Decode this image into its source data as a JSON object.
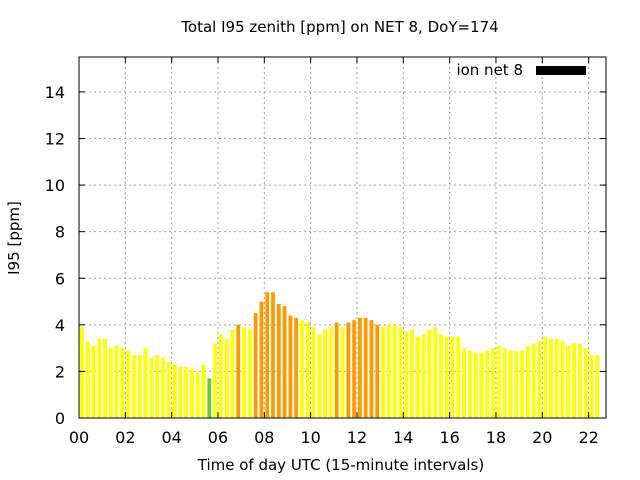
{
  "chart_data": {
    "type": "bar",
    "title": "Total I95 zenith [ppm] on NET 8, DoY=174",
    "xlabel": "Time of day UTC (15-minute intervals)",
    "ylabel": "I95 [ppm]",
    "xlim": [
      0,
      22.75
    ],
    "ylim": [
      0,
      15.5
    ],
    "xticks": [
      "00",
      "02",
      "04",
      "06",
      "08",
      "10",
      "12",
      "14",
      "16",
      "18",
      "20",
      "22"
    ],
    "yticks": [
      "0",
      "2",
      "4",
      "6",
      "8",
      "10",
      "12",
      "14"
    ],
    "grid": true,
    "legend_position": "top-right",
    "bin_hours": 0.25,
    "series": [
      {
        "name": "ion net 8",
        "legend_color": "#000000",
        "start_hour": 0.0,
        "values": [
          3.9,
          3.3,
          3.1,
          3.4,
          3.4,
          3.0,
          3.1,
          3.0,
          2.9,
          2.7,
          2.7,
          3.0,
          2.6,
          2.7,
          2.6,
          2.4,
          2.3,
          2.2,
          2.2,
          2.1,
          2.0,
          2.3,
          1.7,
          3.2,
          3.6,
          3.4,
          3.8,
          4.0,
          3.9,
          3.8,
          4.5,
          5.0,
          5.4,
          5.4,
          4.9,
          4.8,
          4.4,
          4.3,
          4.2,
          4.1,
          3.9,
          3.6,
          3.8,
          3.9,
          4.1,
          3.9,
          4.1,
          4.2,
          4.3,
          4.3,
          4.2,
          4.0,
          3.9,
          4.0,
          4.0,
          3.9,
          3.7,
          3.8,
          3.5,
          3.6,
          3.8,
          3.9,
          3.6,
          3.5,
          3.5,
          3.5,
          3.0,
          2.9,
          2.8,
          2.8,
          2.9,
          3.0,
          3.1,
          3.0,
          2.9,
          2.9,
          2.9,
          3.1,
          3.2,
          3.3,
          3.5,
          3.4,
          3.4,
          3.3,
          3.1,
          3.2,
          3.2,
          3.0,
          2.7,
          2.7
        ],
        "colors": [
          "#ffff00",
          "#ffff00",
          "#ffff00",
          "#ffff00",
          "#ffff00",
          "#ffff00",
          "#ffff00",
          "#ffff00",
          "#ffff00",
          "#ffff00",
          "#ffff00",
          "#ffff00",
          "#ffff00",
          "#ffff00",
          "#ffff00",
          "#ffff00",
          "#ffff00",
          "#ffff00",
          "#ffff00",
          "#ffff00",
          "#ffff00",
          "#ffff00",
          "#66cc33",
          "#ffff00",
          "#ffff00",
          "#ffff00",
          "#ffff00",
          "#ff9900",
          "#ffff00",
          "#ffff00",
          "#ff9900",
          "#ff9900",
          "#ff9900",
          "#ff9900",
          "#ff9900",
          "#ff9900",
          "#ff9900",
          "#ff9900",
          "#ffff00",
          "#ffff00",
          "#ffff00",
          "#ffff00",
          "#ffff00",
          "#ffff00",
          "#ff9900",
          "#ffff00",
          "#ff9900",
          "#ff9900",
          "#ff9900",
          "#ff9900",
          "#ff9900",
          "#ff9900",
          "#ffff00",
          "#ffff00",
          "#ffff00",
          "#ffff00",
          "#ffff00",
          "#ffff00",
          "#ffff00",
          "#ffff00",
          "#ffff00",
          "#ffff00",
          "#ffff00",
          "#ffff00",
          "#ffff00",
          "#ffff00",
          "#ffff00",
          "#ffff00",
          "#ffff00",
          "#ffff00",
          "#ffff00",
          "#ffff00",
          "#ffff00",
          "#ffff00",
          "#ffff00",
          "#ffff00",
          "#ffff00",
          "#ffff00",
          "#ffff00",
          "#ffff00",
          "#ffff00",
          "#ffff00",
          "#ffff00",
          "#ffff00",
          "#ffff00",
          "#ffff00",
          "#ffff00",
          "#ffff00",
          "#ffff00",
          "#ffff00"
        ]
      }
    ]
  }
}
